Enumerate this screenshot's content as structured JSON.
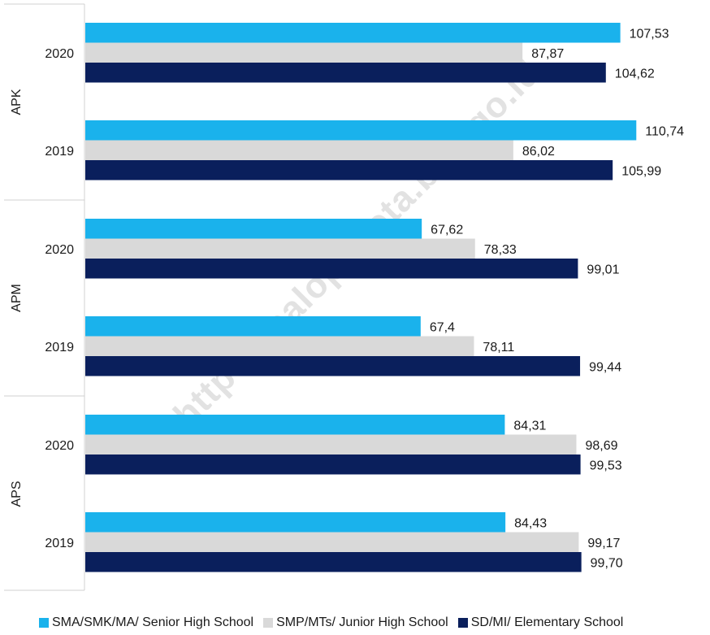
{
  "watermark": "https://palopokota.bps.go.id",
  "colors": {
    "senior": "#1ab2ec",
    "junior": "#d9d9d9",
    "elementary": "#0a1f5c",
    "axis": "#d0d0d0"
  },
  "chart_data": {
    "type": "bar",
    "orientation": "horizontal",
    "groups": [
      {
        "name": "APK",
        "years": [
          "2020",
          "2019"
        ]
      },
      {
        "name": "APM",
        "years": [
          "2020",
          "2019"
        ]
      },
      {
        "name": "APS",
        "years": [
          "2020",
          "2019"
        ]
      }
    ],
    "categories": [
      "APK 2020",
      "APK 2019",
      "APM 2020",
      "APM 2019",
      "APS 2020",
      "APS 2019"
    ],
    "series": [
      {
        "name": "SMA/SMK/MA/ Senior High School",
        "color": "#1ab2ec",
        "values": [
          107.53,
          110.74,
          67.62,
          67.4,
          84.31,
          84.43
        ],
        "labels": [
          "107,53",
          "110,74",
          "67,62",
          "67,4",
          "84,31",
          "84,43"
        ]
      },
      {
        "name": "SMP/MTs/ Junior High School",
        "color": "#d9d9d9",
        "values": [
          87.87,
          86.02,
          78.33,
          78.11,
          98.69,
          99.17
        ],
        "labels": [
          "87,87",
          "86,02",
          "78,33",
          "78,11",
          "98,69",
          "99,17"
        ]
      },
      {
        "name": "SD/MI/ Elementary School",
        "color": "#0a1f5c",
        "values": [
          104.62,
          105.99,
          99.01,
          99.44,
          99.53,
          99.7
        ],
        "labels": [
          "104,62",
          "105,99",
          "99,01",
          "99,44",
          "99,53",
          "99,70"
        ]
      }
    ],
    "xlim": [
      0,
      123
    ],
    "grid": false,
    "legend": "bottom"
  }
}
